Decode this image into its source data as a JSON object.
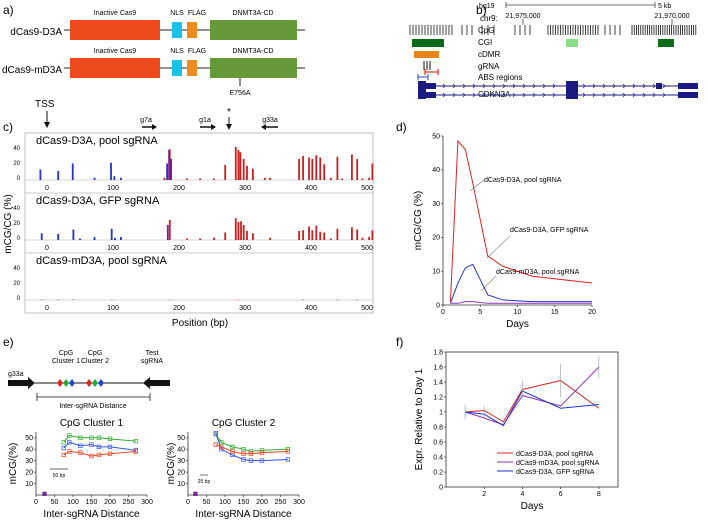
{
  "panel_labels": {
    "a": "a)",
    "b": "b)",
    "c": "c)",
    "d": "d)",
    "e": "e)",
    "f": "f)"
  },
  "panel_a": {
    "constructs": [
      {
        "name": "dCas9-D3A",
        "domains": [
          "Inactive Cas9",
          "NLS",
          "FLAG",
          "DNMT3A-CD"
        ],
        "mutation": ""
      },
      {
        "name": "dCas9-mD3A",
        "domains": [
          "Inactive Cas9",
          "NLS",
          "FLAG",
          "DNMT3A-CD"
        ],
        "mutation": "E756A"
      }
    ],
    "colors": {
      "cas9": "#ef4a1c",
      "nls": "#19c3e8",
      "flag": "#f08c1e",
      "dnmt": "#66993a"
    }
  },
  "panel_b": {
    "assembly": "hg19",
    "scale": "5 kb",
    "chrom": "chr9:",
    "coord_left": "21,975,000",
    "coord_right": "21,970,000",
    "tracks": [
      "CpG",
      "CGI",
      "cDMR",
      "gRNA",
      "ABS regions",
      "CDKN2A"
    ],
    "colors": {
      "cgi_dark": "#0c6b19",
      "cgi_light": "#88dd88",
      "cdmr": "#e8841a",
      "gene": "#1a1a80",
      "abs_blue": "#4466cc",
      "abs_red": "#dd3311"
    }
  },
  "panel_c": {
    "annotations": [
      "TSS",
      "g7a",
      "g1a",
      "*",
      "g33a"
    ],
    "tracks": [
      {
        "title": "dCas9-D3A, pool sgRNA"
      },
      {
        "title": "dCas9-D3A, GFP sgRNA"
      },
      {
        "title": "dCas9-mD3A, pool sgRNA"
      }
    ],
    "ylabel": "mCG/CG (%)",
    "yticks": [
      "40",
      "20",
      "0"
    ],
    "xticks": [
      "0",
      "100",
      "200",
      "300",
      "400",
      "500"
    ],
    "xlabel": "Position (bp)"
  },
  "panel_e": {
    "diagram": {
      "left_guide": "g33a",
      "cluster1": "CpG\nCluster 1",
      "cluster2": "CpG\nCluster 2",
      "right_guide": "Test\nsgRNA",
      "distance": "Inter-sgRNA Distance"
    },
    "ylabel": "mCG/(%)",
    "scale_bar_1": "50 bp",
    "scale_bar_2": "25 bp"
  },
  "chart_data": [
    {
      "id": "c_pool",
      "type": "bar",
      "title": "dCas9-D3A, pool sgRNA",
      "xlabel": "Position (bp)",
      "ylabel": "mCG/CG (%)",
      "xlim": [
        -20,
        500
      ],
      "ylim": [
        0,
        45
      ],
      "series": [
        {
          "name": "",
          "color": "#2233cc",
          "x": [
            -10,
            17,
            39,
            72,
            97,
            102,
            112,
            182
          ],
          "values": [
            14,
            12,
            22,
            3,
            23,
            5,
            3,
            22
          ]
        },
        {
          "name": "",
          "color": "#cc1e1e",
          "x": [
            178,
            186,
            212,
            232,
            253,
            270,
            286,
            290,
            293,
            298,
            303,
            312,
            330,
            338,
            382,
            388,
            397,
            402,
            408,
            414,
            420,
            430,
            440,
            447,
            462,
            470,
            478,
            488,
            493
          ],
          "values": [
            3,
            41,
            2,
            2,
            2,
            20,
            44,
            40,
            37,
            28,
            19,
            15,
            3,
            3,
            28,
            32,
            30,
            28,
            33,
            30,
            21,
            3,
            31,
            2,
            34,
            28,
            2,
            3,
            22
          ]
        },
        {
          "name": "",
          "color": "#7a1a9a",
          "x": [
            185,
            188
          ],
          "values": [
            40,
            28
          ]
        }
      ]
    },
    {
      "id": "c_gfp",
      "type": "bar",
      "title": "dCas9-D3A, GFP sgRNA",
      "xlabel": "Position (bp)",
      "ylabel": "mCG/CG (%)",
      "xlim": [
        -20,
        500
      ],
      "ylim": [
        0,
        45
      ],
      "series": [
        {
          "name": "",
          "color": "#2233cc",
          "x": [
            -8,
            17,
            40,
            50,
            72,
            98,
            103,
            112
          ],
          "values": [
            9,
            8,
            14,
            2,
            4,
            15,
            3,
            4
          ]
        },
        {
          "name": "",
          "color": "#cc1e1e",
          "x": [
            186,
            212,
            232,
            253,
            270,
            286,
            290,
            294,
            298,
            303,
            312,
            338,
            382,
            388,
            397,
            402,
            408,
            414,
            420,
            430,
            440,
            462,
            470,
            478,
            488,
            493
          ],
          "values": [
            27,
            2,
            2,
            3,
            10,
            29,
            24,
            25,
            20,
            12,
            9,
            3,
            12,
            13,
            18,
            13,
            19,
            11,
            10,
            2,
            15,
            17,
            14,
            3,
            4,
            13
          ]
        },
        {
          "name": "",
          "color": "#7a1a9a",
          "x": [
            183
          ],
          "values": [
            20
          ]
        }
      ]
    },
    {
      "id": "c_mut",
      "type": "bar",
      "title": "dCas9-mD3A, pool sgRNA",
      "xlabel": "Position (bp)",
      "ylabel": "mCG/CG (%)",
      "xlim": [
        -20,
        500
      ],
      "ylim": [
        0,
        45
      ],
      "series": [
        {
          "name": "",
          "color": "#2233cc",
          "x": [
            -8,
            17,
            40,
            98
          ],
          "values": [
            0.5,
            0.5,
            0.5,
            0.5
          ]
        },
        {
          "name": "",
          "color": "#cc1e1e",
          "x": [
            186,
            290,
            388,
            440,
            470
          ],
          "values": [
            0.5,
            0.5,
            0.5,
            0.5,
            0.5
          ]
        }
      ]
    },
    {
      "id": "d",
      "type": "line",
      "xlabel": "Days",
      "ylabel": "mCG/CG (%)",
      "xlim": [
        0,
        20
      ],
      "ylim": [
        0,
        50
      ],
      "xticks": [
        0,
        5,
        10,
        15,
        20
      ],
      "yticks": [
        0,
        10,
        20,
        30,
        40,
        50
      ],
      "series": [
        {
          "name": "dCas9-D3A, pool sgRNA",
          "color": "#dd2222",
          "x": [
            1,
            2,
            3,
            4,
            6,
            8,
            12,
            20
          ],
          "y": [
            1,
            48.5,
            46,
            36,
            14.5,
            11.5,
            8.5,
            6.5
          ]
        },
        {
          "name": "dCas9-D3A, GFP sgRNA",
          "color": "#2233cc",
          "x": [
            1,
            2,
            3,
            4,
            6,
            8,
            12,
            20
          ],
          "y": [
            0.5,
            6.5,
            11,
            12,
            3,
            1.5,
            1,
            1
          ]
        },
        {
          "name": "dCas9-mD3A, pool sgRNA",
          "color": "#8833bb",
          "x": [
            1,
            2,
            3,
            4,
            6,
            8,
            12,
            20
          ],
          "y": [
            0.5,
            0.5,
            1,
            1,
            0.5,
            0.5,
            0.5,
            0.5
          ]
        }
      ]
    },
    {
      "id": "e1",
      "type": "line",
      "title": "CpG Cluster 1",
      "xlabel": "Inter-sgRNA Distance",
      "ylabel": "mCG/(%)",
      "xlim": [
        0,
        300
      ],
      "ylim": [
        0,
        55
      ],
      "xticks": [
        0,
        50,
        100,
        150,
        200,
        250,
        300
      ],
      "yticks": [
        10,
        20,
        30,
        40,
        50
      ],
      "series": [
        {
          "name": "",
          "color": "#33aa33",
          "x": [
            75,
            90,
            120,
            150,
            170,
            200,
            270
          ],
          "y": [
            46,
            52,
            50,
            50,
            50,
            49,
            47
          ]
        },
        {
          "name": "",
          "color": "#3355dd",
          "x": [
            75,
            90,
            120,
            150,
            170,
            200,
            270
          ],
          "y": [
            41,
            46,
            43,
            44,
            42,
            42,
            39
          ]
        },
        {
          "name": "",
          "color": "#ee4422",
          "x": [
            75,
            90,
            120,
            150,
            170,
            200,
            270
          ],
          "y": [
            35,
            38,
            37,
            34,
            35,
            36,
            38
          ]
        },
        {
          "name": "",
          "color": "#7a2a9a",
          "x": [
            23
          ],
          "y": [
            1
          ]
        }
      ]
    },
    {
      "id": "e2",
      "type": "line",
      "title": "CpG Cluster 2",
      "xlabel": "Inter-sgRNA Distance",
      "ylabel": "mCG/(%)",
      "xlim": [
        0,
        300
      ],
      "ylim": [
        0,
        55
      ],
      "xticks": [
        0,
        50,
        100,
        150,
        200,
        250,
        300
      ],
      "yticks": [
        10,
        20,
        30,
        40,
        50
      ],
      "series": [
        {
          "name": "",
          "color": "#33aa33",
          "x": [
            75,
            90,
            120,
            150,
            170,
            200,
            270
          ],
          "y": [
            53,
            46,
            42,
            40,
            38,
            39,
            40
          ]
        },
        {
          "name": "",
          "color": "#3355dd",
          "x": [
            75,
            90,
            120,
            150,
            170,
            200,
            270
          ],
          "y": [
            54,
            40,
            35,
            31,
            30,
            30,
            31
          ]
        },
        {
          "name": "",
          "color": "#ee4422",
          "x": [
            75,
            90,
            120,
            150,
            170,
            200,
            270
          ],
          "y": [
            44,
            42,
            38,
            36,
            36,
            37,
            38
          ]
        },
        {
          "name": "",
          "color": "#7a2a9a",
          "x": [
            20
          ],
          "y": [
            1
          ]
        }
      ]
    },
    {
      "id": "f",
      "type": "line",
      "xlabel": "Days",
      "ylabel": "Expr. Relative to Day 1",
      "xlim": [
        0,
        9
      ],
      "ylim": [
        0,
        1.8
      ],
      "xticks": [
        2,
        4,
        6,
        8
      ],
      "yticks": [
        0,
        0.2,
        0.4,
        0.6,
        0.8,
        1,
        1.2,
        1.4,
        1.6,
        1.8
      ],
      "series": [
        {
          "name": "dCas9-D3A, pool sgRNA",
          "color": "#dd2222",
          "x": [
            1,
            2,
            3,
            4,
            6,
            8
          ],
          "y": [
            1,
            1.02,
            0.87,
            1.3,
            1.42,
            1.05
          ]
        },
        {
          "name": "dCas9-mD3A, pool sgRNA",
          "color": "#8833bb",
          "x": [
            1,
            2,
            3,
            4,
            6,
            8
          ],
          "y": [
            1,
            0.92,
            0.83,
            1.22,
            1.08,
            1.6
          ]
        },
        {
          "name": "dCas9-D3A, GFP sgRNA",
          "color": "#2233cc",
          "x": [
            1,
            2,
            3,
            4,
            6,
            8
          ],
          "y": [
            1,
            0.97,
            0.82,
            1.28,
            1.05,
            1.1
          ]
        }
      ]
    }
  ]
}
